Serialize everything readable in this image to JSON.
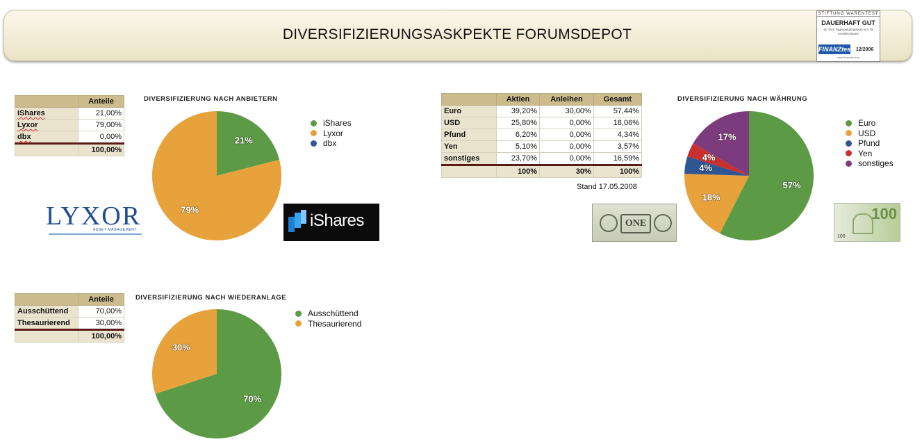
{
  "banner": {
    "title": "DIVERSIFIZIERUNGSASKPEKTE FORUMSDEPOT"
  },
  "seal": {
    "line1": "STIFTUNG WARENTEST",
    "line2": "DAUERHAFT GUT",
    "line3": "Im Test: Tagesgeldangebote von 75 Kreditinstituten",
    "brand": "FINANZtest",
    "date": "12/2006",
    "url": "www.finanztest.de"
  },
  "logos": {
    "lyxor": "LYXOR",
    "lyxor_sub": "ASSET MANAGEMENT",
    "ishares": "iShares",
    "dollar": "ONE",
    "euro": "100",
    "euro_small": "100"
  },
  "tables": {
    "anbieter": {
      "header": "Anteile",
      "rows": [
        {
          "label": "iShares",
          "value": "21,00%"
        },
        {
          "label": "Lyxor",
          "value": "79,00%"
        },
        {
          "label": "dbx",
          "value": "0,00%"
        }
      ],
      "total": "100,00%"
    },
    "waehrung": {
      "headers": [
        "Aktien",
        "Anleihen",
        "Gesamt"
      ],
      "rows": [
        {
          "label": "Euro",
          "values": [
            "39,20%",
            "30,00%",
            "57,44%"
          ]
        },
        {
          "label": "USD",
          "values": [
            "25,80%",
            "0,00%",
            "18,06%"
          ]
        },
        {
          "label": "Pfund",
          "values": [
            "6,20%",
            "0,00%",
            "4,34%"
          ]
        },
        {
          "label": "Yen",
          "values": [
            "5,10%",
            "0,00%",
            "3,57%"
          ]
        },
        {
          "label": "sonstiges",
          "values": [
            "23,70%",
            "0,00%",
            "16,59%"
          ]
        }
      ],
      "totals": [
        "100%",
        "30%",
        "100%"
      ],
      "stand": "Stand 17.05.2008"
    },
    "wiederanlage": {
      "header": "Anteile",
      "rows": [
        {
          "label": "Ausschüttend",
          "value": "70,00%"
        },
        {
          "label": "Thesaurierend",
          "value": "30,00%"
        }
      ],
      "total": "100,00%"
    }
  },
  "colors": {
    "green": "#5d9a45",
    "orange": "#e7a23b",
    "blue": "#2f5593",
    "red": "#c8302f",
    "purple": "#7c3b7d"
  },
  "chart_data": [
    {
      "type": "pie",
      "title": "DIVERSIFIZIERUNG NACH ANBIETERN",
      "categories": [
        "iShares",
        "Lyxor",
        "dbx"
      ],
      "values": [
        21,
        79,
        0
      ],
      "labels": [
        "21%",
        "79%",
        ""
      ],
      "colors": [
        "#5d9a45",
        "#e7a23b",
        "#2f5593"
      ],
      "legend": "right"
    },
    {
      "type": "pie",
      "title": "DIVERSIFIZIERUNG NACH WÄHRUNG",
      "categories": [
        "Euro",
        "USD",
        "Pfund",
        "Yen",
        "sonstiges"
      ],
      "values": [
        57.44,
        18.06,
        4.34,
        3.57,
        16.59
      ],
      "labels": [
        "57%",
        "18%",
        "4%",
        "4%",
        "17%"
      ],
      "colors": [
        "#5d9a45",
        "#e7a23b",
        "#2f5593",
        "#c8302f",
        "#7c3b7d"
      ],
      "legend": "right"
    },
    {
      "type": "pie",
      "title": "DIVERSIFIZIERUNG NACH WIEDERANLAGE",
      "categories": [
        "Ausschüttend",
        "Thesaurierend"
      ],
      "values": [
        70,
        30
      ],
      "labels": [
        "70%",
        "30%"
      ],
      "colors": [
        "#5d9a45",
        "#e7a23b"
      ],
      "legend": "right"
    }
  ]
}
